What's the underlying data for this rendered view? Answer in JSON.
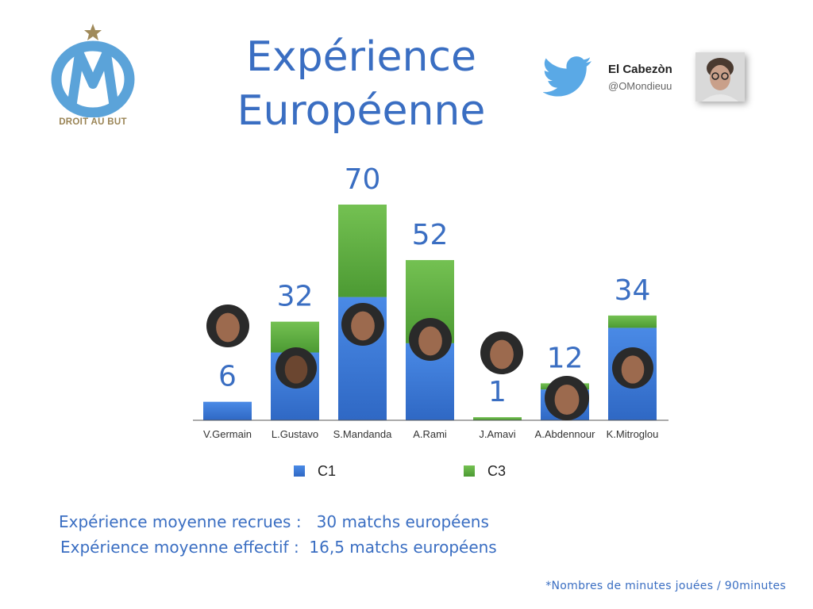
{
  "title_lines": [
    "Expérience",
    "Européenne"
  ],
  "logo": {
    "text": "DROIT AU BUT",
    "icon": "om-club-crest-icon",
    "color": "#5ba3d9"
  },
  "author": {
    "name": "El Cabezòn",
    "handle": "@OMondieuu",
    "icon": "twitter-bird-icon",
    "color": "#5aa9e6"
  },
  "chart_data": {
    "type": "bar",
    "stacked": true,
    "categories": [
      "V.Germain",
      "L.Gustavo",
      "S.Mandanda",
      "A.Rami",
      "J.Amavi",
      "A.Abdennour",
      "K.Mitroglou"
    ],
    "series": [
      {
        "name": "C1",
        "values": [
          6,
          22,
          40,
          25,
          0,
          10,
          30
        ],
        "color": "#3b78d8"
      },
      {
        "name": "C3",
        "values": [
          0,
          10,
          30,
          27,
          1,
          2,
          4
        ],
        "color": "#5fad3f"
      }
    ],
    "totals": [
      6,
      32,
      70,
      52,
      1,
      12,
      34
    ],
    "ylim": [
      0,
      70
    ],
    "grid": false,
    "legend": "bottom"
  },
  "notes": [
    "Expérience moyenne recrues :   30 matchs européens",
    "Expérience moyenne effectif :  16,5 matchs européens"
  ],
  "footnote": "*Nombres de minutes jouées / 90minutes"
}
